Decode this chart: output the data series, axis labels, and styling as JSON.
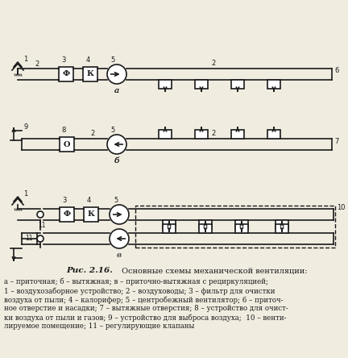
{
  "fig_width": 4.32,
  "fig_height": 4.44,
  "dpi": 100,
  "bg_color": "#f0ece0",
  "line_color": "#1a1a1a",
  "title_bold": "Рис. 2.16.",
  "title_normal": " Основные схемы механической вентиляции:",
  "caption_lines": [
    "а – приточная; б – вытяжная; в – приточно-вытяжная с рециркуляцией;",
    "1 – воздухозаборное устройство; 2 – воздуховоды; 3 – фильтр для очистки",
    "воздуха от пыли; 4 – калорифер; 5 – центробежный вентилятор; 6 – приточ-",
    "ное отверстие и насадки; 7 – вытяжные отверстия; 8 – устройство для очист-",
    "ки воздуха от пыли и газов; 9 – устройство для выброса воздуха;  10 – венти-",
    "лируемое помещение; 11 – регулирующие клапаны"
  ]
}
